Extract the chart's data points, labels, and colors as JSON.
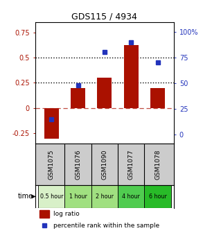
{
  "title": "GDS115 / 4934",
  "samples": [
    "GSM1075",
    "GSM1076",
    "GSM1090",
    "GSM1077",
    "GSM1078"
  ],
  "time_labels": [
    "0.5 hour",
    "1 hour",
    "2 hour",
    "4 hour",
    "6 hour"
  ],
  "time_colors": [
    "#d8f0c8",
    "#a0e080",
    "#a0e080",
    "#50cc50",
    "#28bb28"
  ],
  "log_ratios": [
    -0.3,
    0.2,
    0.3,
    0.62,
    0.2
  ],
  "percentile_ranks": [
    15,
    48,
    80,
    90,
    70
  ],
  "bar_color": "#aa1100",
  "dot_color": "#2233bb",
  "ylim_left": [
    -0.35,
    0.85
  ],
  "ylim_right": [
    -8.75,
    109.375
  ],
  "yticks_left": [
    -0.25,
    0,
    0.25,
    0.5,
    0.75
  ],
  "yticks_right": [
    0,
    25,
    50,
    75,
    100
  ],
  "hlines": [
    0.25,
    0.5
  ],
  "background_color": "#ffffff",
  "legend_log_ratio": "log ratio",
  "legend_percentile": "percentile rank within the sample",
  "time_label": "time"
}
